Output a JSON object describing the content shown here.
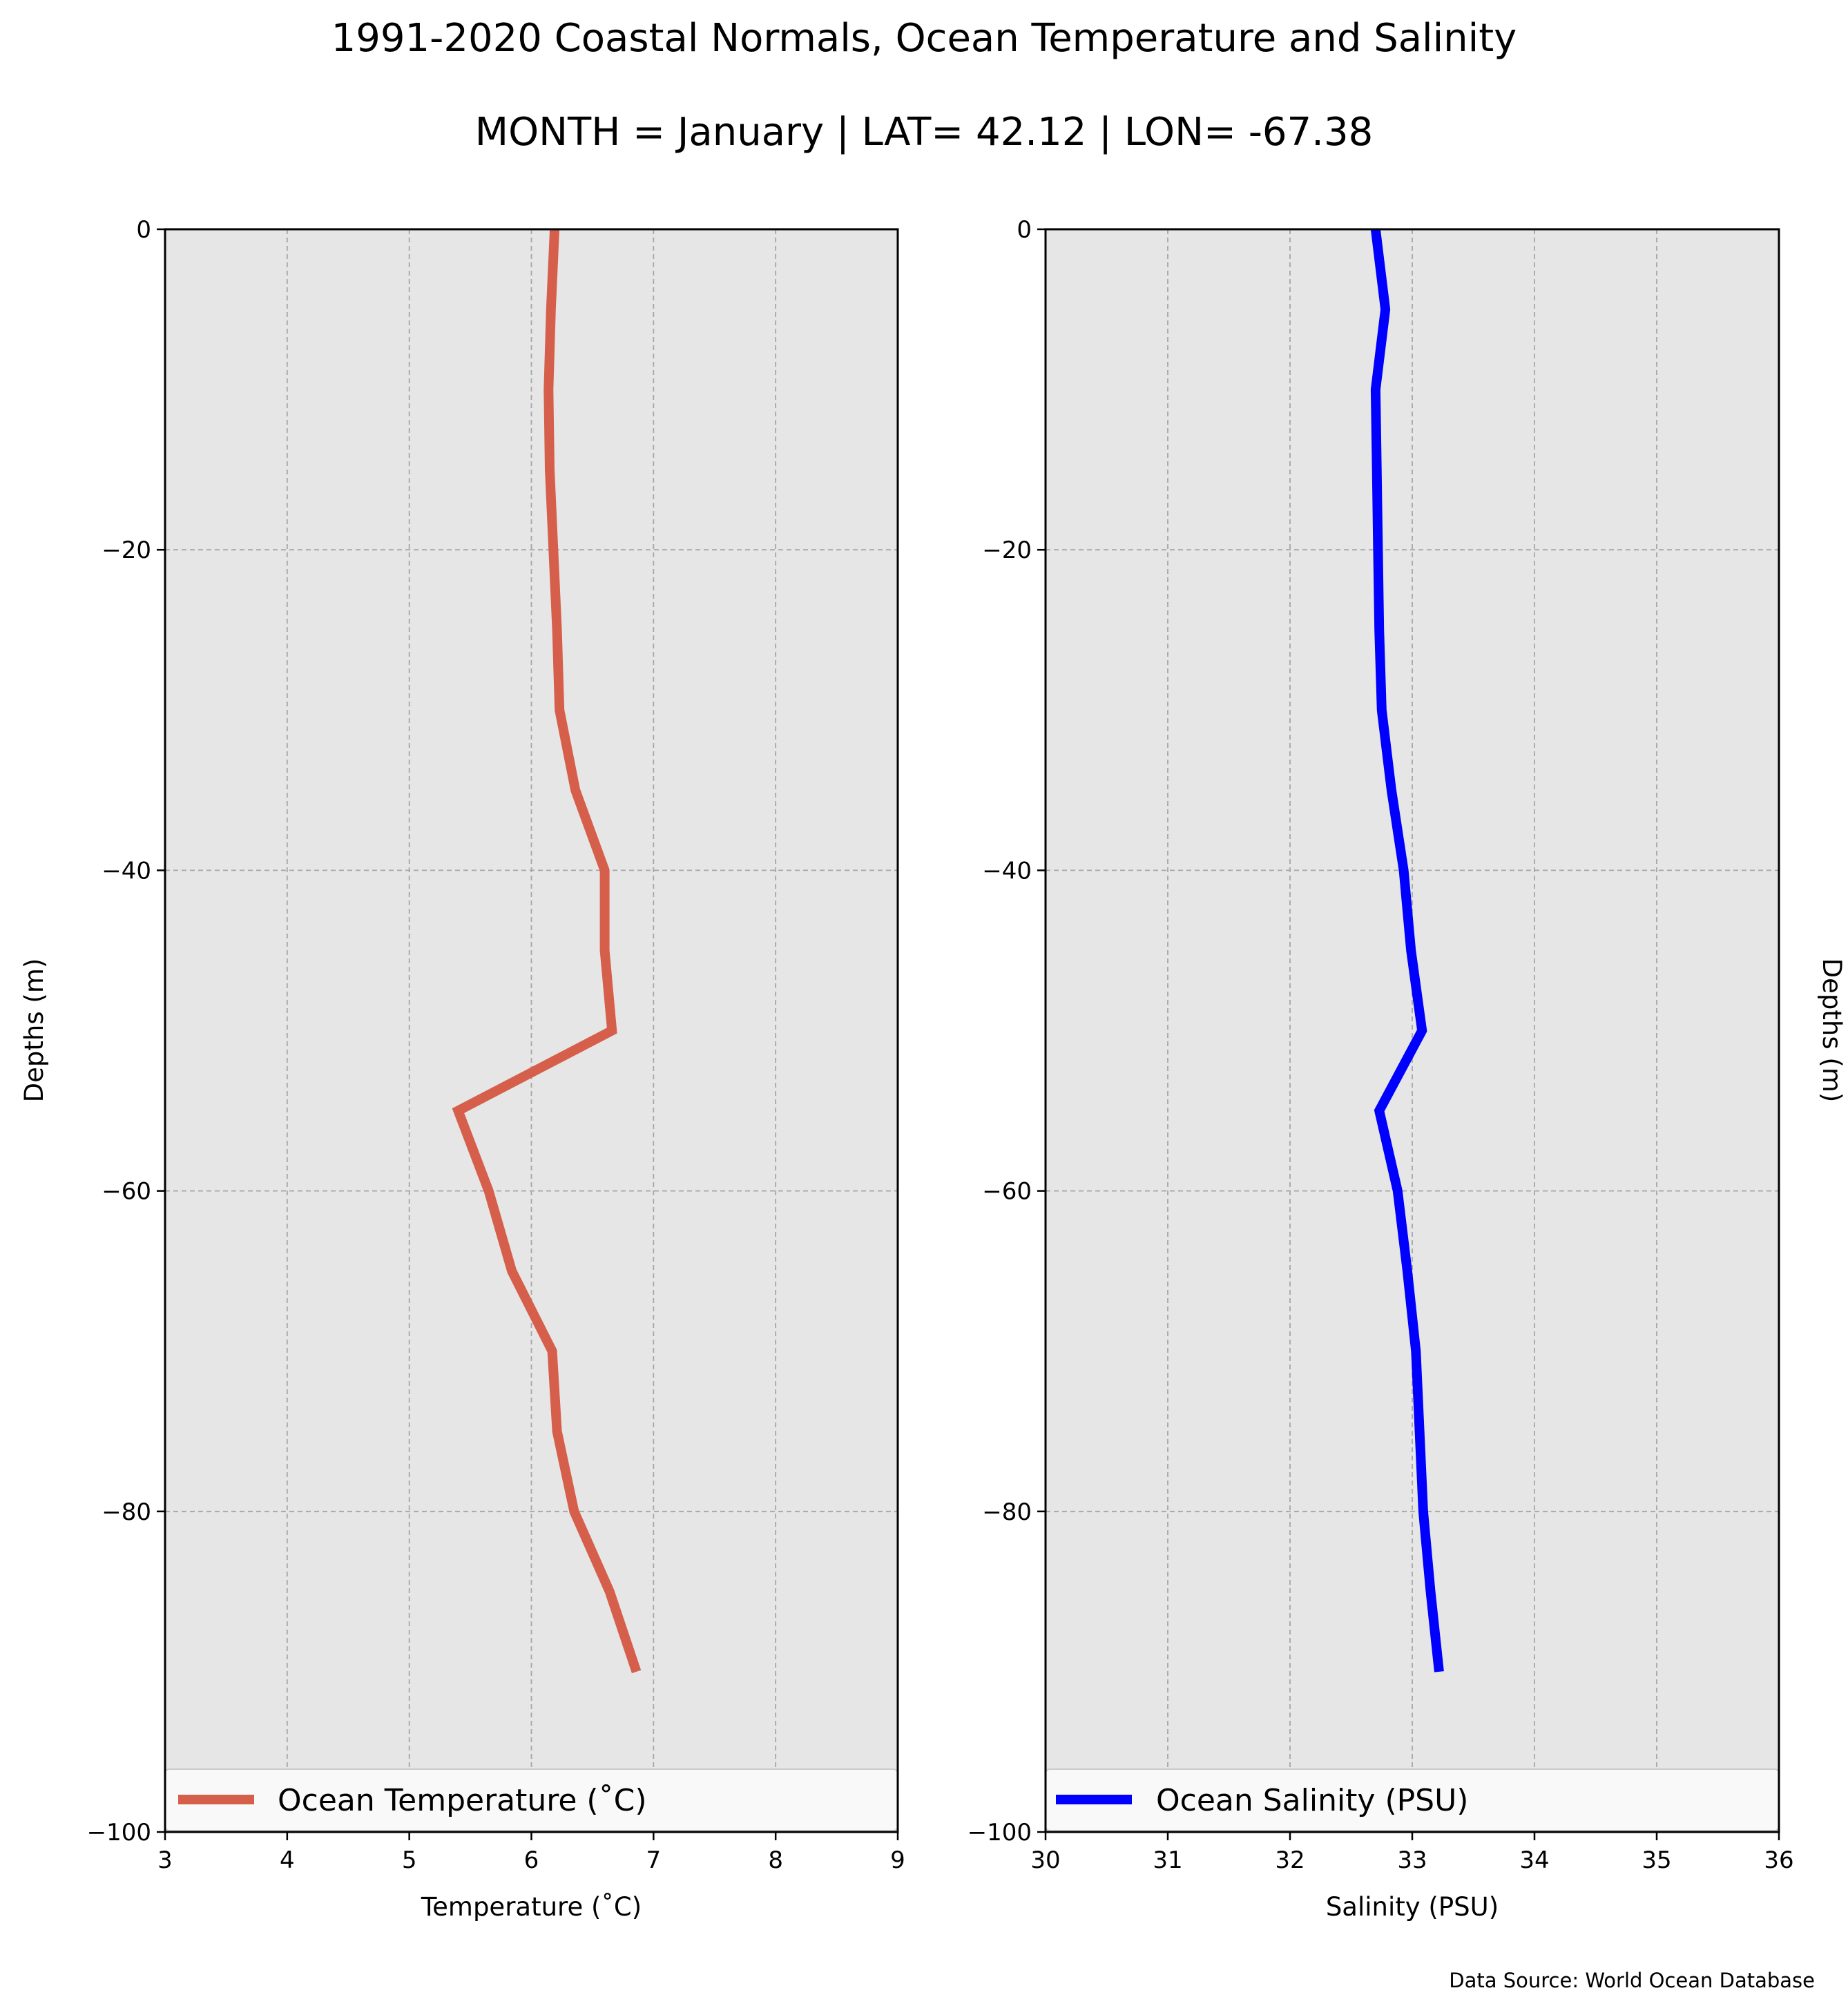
{
  "header": {
    "title": "1991-2020 Coastal Normals, Ocean Temperature and Salinity",
    "subtitle": "MONTH = January | LAT= 42.12 | LON= -67.38"
  },
  "footer": {
    "source": "Data Source: World Ocean Database"
  },
  "chart_data": [
    {
      "type": "line",
      "xlabel": "Temperature (˚C)",
      "ylabel": "Depths (m)",
      "xlim": [
        3,
        9
      ],
      "ylim": [
        -100,
        0
      ],
      "xticks": [
        "3",
        "4",
        "5",
        "6",
        "7",
        "8",
        "9"
      ],
      "yticks": [
        "0",
        "−20",
        "−40",
        "−60",
        "−80",
        "−100"
      ],
      "grid": true,
      "background": "#e6e6e6",
      "legend_position": "lower center",
      "series": [
        {
          "name": "Ocean Temperature (˚C)",
          "color": "#d65f4b",
          "depth": [
            0,
            -5,
            -10,
            -15,
            -20,
            -25,
            -30,
            -35,
            -40,
            -45,
            -50,
            -55,
            -60,
            -65,
            -70,
            -75,
            -80,
            -85,
            -90
          ],
          "values": [
            6.19,
            6.16,
            6.14,
            6.15,
            6.18,
            6.21,
            6.23,
            6.36,
            6.6,
            6.6,
            6.66,
            5.4,
            5.65,
            5.84,
            6.17,
            6.21,
            6.35,
            6.64,
            6.86
          ]
        }
      ]
    },
    {
      "type": "line",
      "xlabel": "Salinity (PSU)",
      "ylabel": "Depths (m)",
      "xlim": [
        30,
        36
      ],
      "ylim": [
        -100,
        0
      ],
      "xticks": [
        "30",
        "31",
        "32",
        "33",
        "34",
        "35",
        "36"
      ],
      "yticks": [
        "0",
        "−20",
        "−40",
        "−60",
        "−80",
        "−100"
      ],
      "grid": true,
      "background": "#e6e6e6",
      "legend_position": "lower center",
      "series": [
        {
          "name": "Ocean Salinity (PSU)",
          "color": "#0000ff",
          "depth": [
            0,
            -5,
            -10,
            -15,
            -20,
            -25,
            -30,
            -35,
            -40,
            -45,
            -50,
            -55,
            -60,
            -65,
            -70,
            -75,
            -80,
            -85,
            -90
          ],
          "values": [
            32.7,
            32.78,
            32.7,
            32.71,
            32.72,
            32.73,
            32.75,
            32.83,
            32.93,
            32.99,
            33.08,
            32.73,
            32.88,
            32.96,
            33.03,
            33.06,
            33.09,
            33.15,
            33.22
          ]
        }
      ]
    }
  ]
}
